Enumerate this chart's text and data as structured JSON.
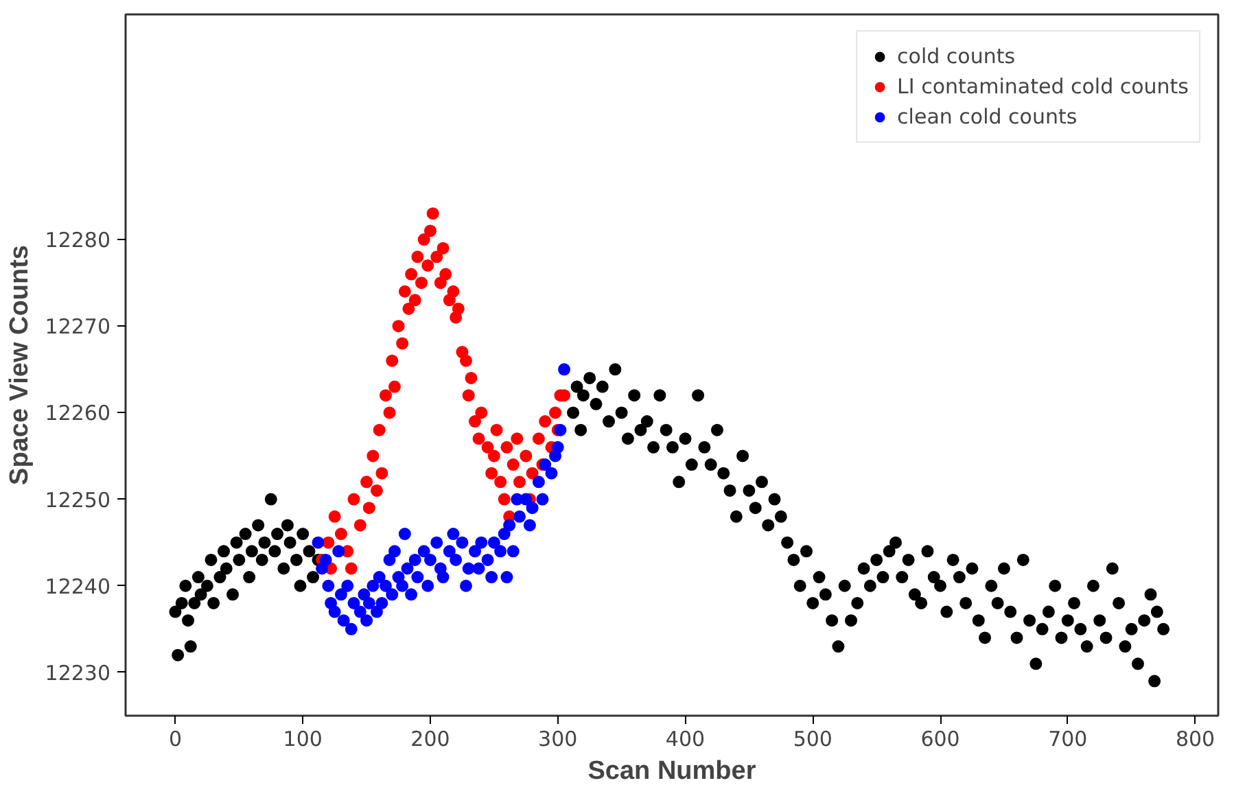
{
  "chart_data": {
    "type": "scatter",
    "xlabel": "Scan Number",
    "ylabel": "Space View Counts",
    "xlim": [
      -39,
      818
    ],
    "ylim": [
      12225,
      12306
    ],
    "xticks": [
      0,
      100,
      200,
      300,
      400,
      500,
      600,
      700,
      800
    ],
    "yticks": [
      12230,
      12240,
      12250,
      12260,
      12270,
      12280
    ],
    "grid": false,
    "legend": "top right",
    "marker": "circle",
    "series": [
      {
        "name": "cold counts",
        "color": "#000000",
        "x": [
          0,
          2,
          5,
          8,
          10,
          12,
          15,
          18,
          20,
          25,
          28,
          30,
          35,
          38,
          40,
          45,
          48,
          50,
          55,
          58,
          60,
          65,
          68,
          70,
          75,
          78,
          80,
          85,
          88,
          90,
          95,
          98,
          100,
          105,
          108,
          112,
          312,
          315,
          318,
          320,
          325,
          330,
          335,
          340,
          345,
          350,
          355,
          360,
          365,
          370,
          375,
          380,
          385,
          390,
          395,
          400,
          405,
          410,
          415,
          420,
          425,
          430,
          435,
          440,
          445,
          450,
          455,
          460,
          465,
          470,
          475,
          480,
          485,
          490,
          495,
          500,
          505,
          510,
          515,
          520,
          525,
          530,
          535,
          540,
          545,
          550,
          555,
          560,
          565,
          570,
          575,
          580,
          585,
          590,
          595,
          600,
          605,
          610,
          615,
          620,
          625,
          630,
          635,
          640,
          645,
          650,
          655,
          660,
          665,
          670,
          675,
          680,
          685,
          690,
          695,
          700,
          705,
          710,
          715,
          720,
          725,
          730,
          735,
          740,
          745,
          750,
          755,
          760,
          765,
          768,
          770,
          775
        ],
        "values": [
          12237,
          12232,
          12238,
          12240,
          12236,
          12233,
          12238,
          12241,
          12239,
          12240,
          12243,
          12238,
          12241,
          12244,
          12242,
          12239,
          12245,
          12243,
          12246,
          12241,
          12244,
          12247,
          12243,
          12245,
          12250,
          12244,
          12246,
          12242,
          12247,
          12245,
          12243,
          12240,
          12246,
          12244,
          12241,
          12243,
          12260,
          12263,
          12258,
          12262,
          12264,
          12261,
          12263,
          12259,
          12265,
          12260,
          12257,
          12262,
          12258,
          12259,
          12256,
          12262,
          12258,
          12256,
          12252,
          12257,
          12254,
          12262,
          12256,
          12254,
          12258,
          12253,
          12251,
          12248,
          12255,
          12251,
          12249,
          12252,
          12247,
          12250,
          12248,
          12245,
          12243,
          12240,
          12244,
          12238,
          12241,
          12239,
          12236,
          12233,
          12240,
          12236,
          12238,
          12242,
          12240,
          12243,
          12241,
          12244,
          12245,
          12241,
          12243,
          12239,
          12238,
          12244,
          12241,
          12240,
          12237,
          12243,
          12241,
          12238,
          12242,
          12236,
          12234,
          12240,
          12238,
          12242,
          12237,
          12234,
          12243,
          12236,
          12231,
          12235,
          12237,
          12240,
          12234,
          12236,
          12238,
          12235,
          12233,
          12240,
          12236,
          12234,
          12242,
          12238,
          12233,
          12235,
          12231,
          12236,
          12239,
          12229,
          12237,
          12235
        ]
      },
      {
        "name": "LI contaminated cold counts",
        "color": "#ff0000",
        "x": [
          115,
          120,
          122,
          125,
          130,
          135,
          138,
          140,
          145,
          150,
          152,
          155,
          158,
          160,
          162,
          165,
          168,
          170,
          172,
          175,
          178,
          180,
          183,
          185,
          188,
          190,
          193,
          195,
          198,
          200,
          202,
          205,
          208,
          210,
          212,
          215,
          218,
          220,
          222,
          225,
          228,
          230,
          232,
          235,
          238,
          240,
          245,
          248,
          250,
          252,
          255,
          258,
          260,
          262,
          265,
          268,
          270,
          275,
          278,
          280,
          285,
          288,
          290,
          295,
          298,
          300,
          302,
          305
        ],
        "values": [
          12243,
          12245,
          12242,
          12248,
          12246,
          12244,
          12242,
          12250,
          12247,
          12252,
          12249,
          12255,
          12251,
          12258,
          12253,
          12262,
          12260,
          12266,
          12263,
          12270,
          12268,
          12274,
          12272,
          12276,
          12273,
          12278,
          12275,
          12280,
          12277,
          12281,
          12283,
          12278,
          12275,
          12279,
          12276,
          12273,
          12274,
          12271,
          12272,
          12267,
          12266,
          12262,
          12264,
          12259,
          12257,
          12260,
          12256,
          12253,
          12255,
          12258,
          12252,
          12250,
          12256,
          12248,
          12254,
          12257,
          12252,
          12255,
          12250,
          12253,
          12257,
          12254,
          12259,
          12256,
          12260,
          12258,
          12262,
          12262
        ]
      },
      {
        "name": "clean cold counts",
        "color": "#0000ff",
        "x": [
          112,
          115,
          118,
          120,
          122,
          125,
          128,
          130,
          132,
          135,
          138,
          140,
          145,
          148,
          150,
          152,
          155,
          158,
          160,
          162,
          165,
          168,
          170,
          172,
          175,
          178,
          180,
          182,
          185,
          188,
          190,
          195,
          198,
          200,
          205,
          208,
          210,
          215,
          218,
          220,
          225,
          228,
          230,
          235,
          238,
          240,
          245,
          248,
          250,
          255,
          258,
          260,
          262,
          265,
          268,
          270,
          275,
          278,
          280,
          285,
          288,
          290,
          295,
          298,
          300,
          302,
          305
        ],
        "values": [
          12245,
          12242,
          12243,
          12240,
          12238,
          12237,
          12244,
          12239,
          12236,
          12240,
          12235,
          12238,
          12237,
          12239,
          12236,
          12238,
          12240,
          12237,
          12241,
          12238,
          12240,
          12243,
          12239,
          12244,
          12241,
          12240,
          12246,
          12242,
          12239,
          12243,
          12241,
          12244,
          12240,
          12243,
          12245,
          12242,
          12241,
          12244,
          12246,
          12243,
          12245,
          12240,
          12242,
          12244,
          12242,
          12245,
          12243,
          12241,
          12245,
          12244,
          12246,
          12241,
          12247,
          12244,
          12250,
          12248,
          12250,
          12247,
          12249,
          12252,
          12250,
          12254,
          12253,
          12255,
          12256,
          12258,
          12265
        ]
      }
    ]
  }
}
